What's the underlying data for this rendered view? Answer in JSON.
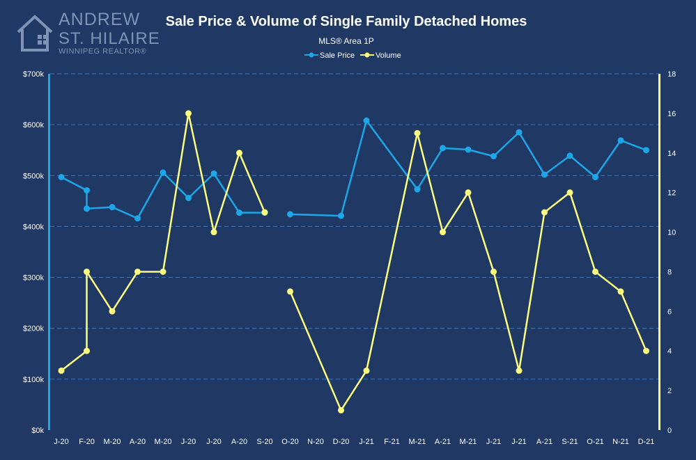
{
  "brand": {
    "line1": "ANDREW",
    "line2": "ST. HILAIRE",
    "line3": "WINNIPEG REALTOR®"
  },
  "colors": {
    "background": "#1f3864",
    "sale_price": "#1ea7e8",
    "volume": "#ffff7f",
    "grid": "#3a78c4"
  },
  "chart_data": {
    "type": "line",
    "title": "Sale Price & Volume of Single Family Detached Homes",
    "subtitle": "MLS® Area 1P",
    "legend_position": "top",
    "grid": true,
    "categories": [
      "J-20",
      "F-20",
      "M-20",
      "A-20",
      "M-20",
      "J-20",
      "J-20",
      "A-20",
      "S-20",
      "O-20",
      "N-20",
      "D-20",
      "J-21",
      "F-21",
      "M-21",
      "A-21",
      "M-21",
      "J-21",
      "J-21",
      "A-21",
      "S-21",
      "O-21",
      "N-21",
      "D-21"
    ],
    "x": [
      0,
      0.97,
      1.97,
      2.97,
      3.97,
      4.97,
      5.97,
      6.97,
      7.97,
      8.97,
      9.97,
      10.97,
      11.97,
      12.97,
      13.97,
      14.97,
      15.97,
      16.97,
      17.97,
      18.97,
      19.97,
      20.97,
      21.97,
      22.97
    ],
    "y_left_ticks": [
      "$0k",
      "$100k",
      "$200k",
      "$300k",
      "$400k",
      "$500k",
      "$600k",
      "$700k"
    ],
    "ylim_left": [
      0,
      700000
    ],
    "y_right_ticks": [
      "0",
      "2",
      "4",
      "6",
      "8",
      "10",
      "12",
      "14",
      "16",
      "18"
    ],
    "ylim_right": [
      0,
      18
    ],
    "series": [
      {
        "name": "Sale Price",
        "axis": "left",
        "points": [
          [
            0,
            497000
          ],
          [
            1,
            471000
          ],
          [
            1,
            435000
          ],
          [
            2,
            438000
          ],
          [
            3,
            416000
          ],
          [
            4,
            506000
          ],
          [
            5,
            456000
          ],
          [
            6,
            504000
          ],
          [
            7,
            427000
          ],
          [
            8,
            427000
          ],
          [
            9,
            424000
          ],
          [
            11,
            421000
          ],
          [
            12,
            608000
          ],
          [
            14,
            473000
          ],
          [
            15,
            554000
          ],
          [
            16,
            551000
          ],
          [
            17,
            538000
          ],
          [
            18,
            585000
          ],
          [
            19,
            502000
          ],
          [
            20,
            539000
          ],
          [
            21,
            497000
          ],
          [
            22,
            569000
          ],
          [
            23,
            550000
          ]
        ],
        "breaks_after": [
          9
        ]
      },
      {
        "name": "Volume",
        "axis": "right",
        "points": [
          [
            0,
            3
          ],
          [
            1,
            4
          ],
          [
            1,
            8
          ],
          [
            2,
            6
          ],
          [
            3,
            8
          ],
          [
            4,
            8
          ],
          [
            5,
            16
          ],
          [
            6,
            10
          ],
          [
            7,
            14
          ],
          [
            8,
            11
          ],
          [
            9,
            7
          ],
          [
            11,
            1
          ],
          [
            12,
            3
          ],
          [
            14,
            15
          ],
          [
            15,
            10
          ],
          [
            16,
            12
          ],
          [
            17,
            8
          ],
          [
            18,
            3
          ],
          [
            19,
            11
          ],
          [
            20,
            12
          ],
          [
            21,
            8
          ],
          [
            22,
            7
          ],
          [
            23,
            4
          ]
        ],
        "breaks_after": [
          9
        ]
      }
    ]
  }
}
